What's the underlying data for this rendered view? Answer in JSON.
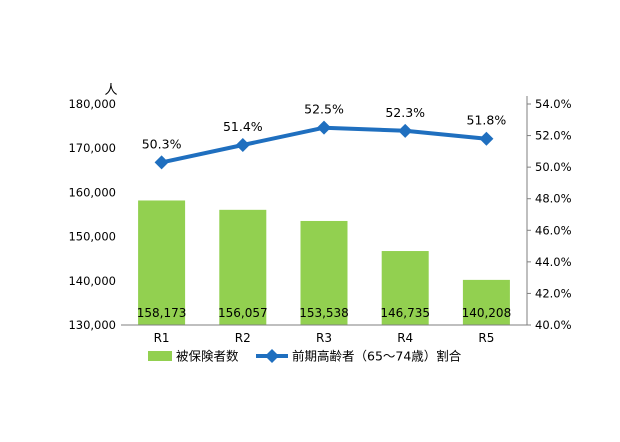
{
  "chart_data": {
    "type": "bar",
    "title": "",
    "categories": [
      "R1",
      "R2",
      "R3",
      "R4",
      "R5"
    ],
    "y_unit_label": "人",
    "ylim": [
      130000,
      180000
    ],
    "y_ticks": [
      "130,000",
      "140,000",
      "150,000",
      "160,000",
      "170,000",
      "180,000"
    ],
    "y2lim": [
      40.0,
      54.0
    ],
    "y2_ticks": [
      "40.0%",
      "42.0%",
      "44.0%",
      "46.0%",
      "48.0%",
      "50.0%",
      "52.0%",
      "54.0%"
    ],
    "grid": false,
    "legend_position": "bottom",
    "series": [
      {
        "name": "被保険者数",
        "type": "bar",
        "axis": "left",
        "color": "#92D050",
        "values": [
          158173,
          156057,
          153538,
          146735,
          140208
        ],
        "labels": [
          "158,173",
          "156,057",
          "153,538",
          "146,735",
          "140,208"
        ]
      },
      {
        "name": "前期高齢者（65～74歳）割合",
        "type": "line",
        "axis": "right",
        "color": "#1F6FBF",
        "marker": "diamond",
        "values": [
          50.3,
          51.4,
          52.5,
          52.3,
          51.8
        ],
        "labels": [
          "50.3%",
          "51.4%",
          "52.5%",
          "52.3%",
          "51.8%"
        ]
      }
    ]
  }
}
